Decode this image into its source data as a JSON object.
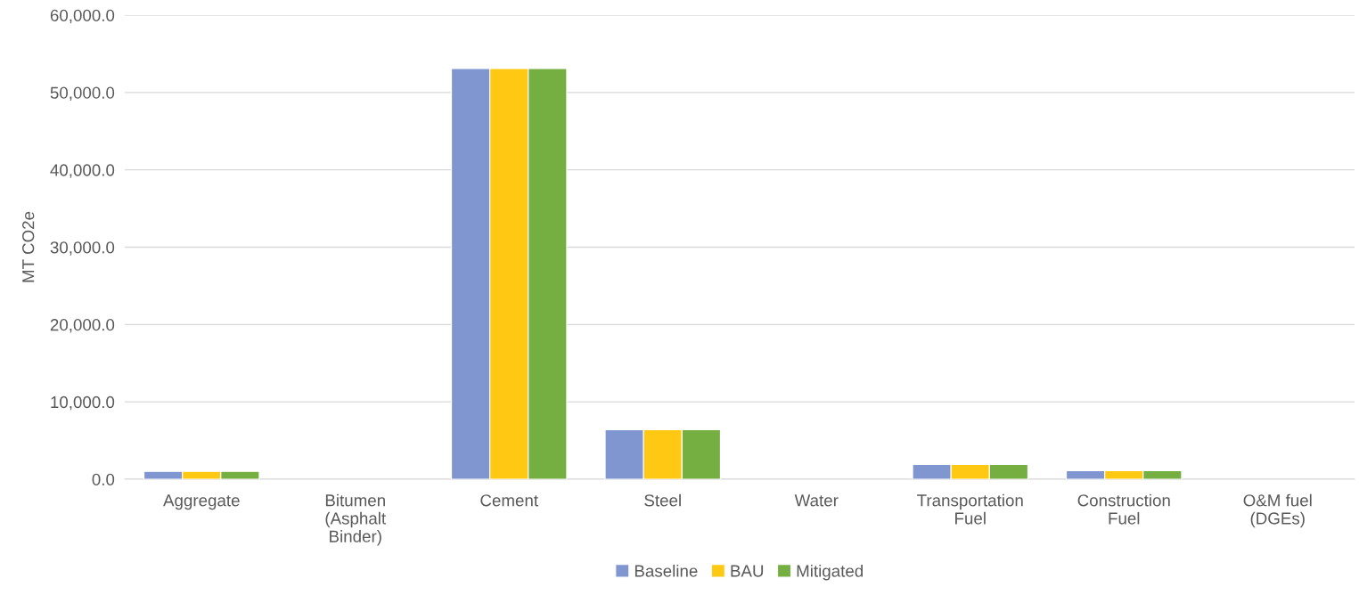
{
  "chart_data": {
    "type": "bar",
    "ylabel": "MT CO2e",
    "categories": [
      "Aggregate",
      "Bitumen (Asphalt Binder)",
      "Cement",
      "Steel",
      "Water",
      "Transportation Fuel",
      "Construction Fuel",
      "O&M fuel (DGEs)"
    ],
    "series": [
      {
        "name": "Baseline",
        "color": "#7f96d1",
        "values": [
          1000,
          null,
          53100,
          6400,
          null,
          1900,
          1100,
          null
        ]
      },
      {
        "name": "BAU",
        "color": "#ffc913",
        "values": [
          1000,
          null,
          53100,
          6400,
          null,
          1900,
          1100,
          null
        ]
      },
      {
        "name": "Mitigated",
        "color": "#76af41",
        "values": [
          1000,
          null,
          53100,
          6400,
          null,
          1900,
          1100,
          null
        ]
      }
    ],
    "ylim": [
      0,
      60000
    ],
    "yticks": [
      {
        "value": 0,
        "label": "0.0"
      },
      {
        "value": 10000,
        "label": "10,000.0"
      },
      {
        "value": 20000,
        "label": "20,000.0"
      },
      {
        "value": 30000,
        "label": "30,000.0"
      },
      {
        "value": 40000,
        "label": "40,000.0"
      },
      {
        "value": 50000,
        "label": "50,000.0"
      },
      {
        "value": 60000,
        "label": "60,000.0"
      }
    ],
    "grid": "y",
    "legend": "bottom"
  }
}
